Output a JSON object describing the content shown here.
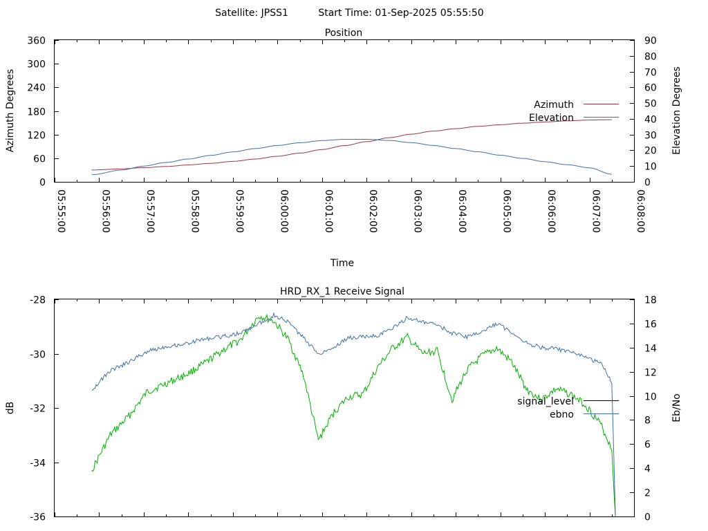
{
  "header": {
    "satellite": "Satellite: JPSS1",
    "start_time": "Start Time: 01-Sep-2025 05:55:50"
  },
  "colors": {
    "azimuth": "#9f3340",
    "elevation": "#3f6fa8",
    "signal_level": "#00b000",
    "ebno": "#3f6fa8",
    "signal_level_legend": "#000000",
    "axes": "#000000",
    "background": "#ffffff"
  },
  "chart_data": [
    {
      "type": "line",
      "title": "Position",
      "xlabel": "Time",
      "ylabel": "Azimuth Degrees",
      "y2label": "Elevation Degrees",
      "xlim": [
        "05:55:00",
        "06:08:00"
      ],
      "ylim": [
        0,
        360
      ],
      "y2lim": [
        0,
        90
      ],
      "x_ticks": [
        "05:55:00",
        "05:56:00",
        "05:57:00",
        "05:58:00",
        "05:59:00",
        "06:00:00",
        "06:01:00",
        "06:02:00",
        "06:03:00",
        "06:04:00",
        "06:05:00",
        "06:06:00",
        "06:07:00",
        "06:08:00"
      ],
      "y_ticks": [
        "0",
        "60",
        "120",
        "180",
        "240",
        "300",
        "360"
      ],
      "y2_ticks": [
        "0",
        "10",
        "20",
        "30",
        "40",
        "50",
        "60",
        "70",
        "80",
        "90"
      ],
      "legend_position": "right",
      "series": [
        {
          "name": "Azimuth",
          "axis": "left",
          "x": [
            "05:55:50",
            "05:56:30",
            "05:57:00",
            "05:57:30",
            "05:58:00",
            "05:58:30",
            "05:59:00",
            "05:59:30",
            "06:00:00",
            "06:00:30",
            "06:01:00",
            "06:01:30",
            "06:02:00",
            "06:02:30",
            "06:03:00",
            "06:03:30",
            "06:04:00",
            "06:04:30",
            "06:05:00",
            "06:05:30",
            "06:06:00",
            "06:06:30",
            "06:07:00",
            "06:07:30"
          ],
          "values": [
            30,
            33,
            36,
            39,
            43,
            47,
            52,
            58,
            65,
            73,
            82,
            92,
            102,
            112,
            121,
            129,
            135,
            141,
            145,
            149,
            152,
            155,
            157,
            158
          ]
        },
        {
          "name": "Elevation",
          "axis": "right",
          "x": [
            "05:55:50",
            "05:56:30",
            "05:57:00",
            "05:57:30",
            "05:58:00",
            "05:58:30",
            "05:59:00",
            "05:59:30",
            "06:00:00",
            "06:00:30",
            "06:01:00",
            "06:01:30",
            "06:02:00",
            "06:02:30",
            "06:03:00",
            "06:03:30",
            "06:04:00",
            "06:04:30",
            "06:05:00",
            "06:05:30",
            "06:06:00",
            "06:06:30",
            "06:07:00",
            "06:07:30"
          ],
          "values": [
            4.5,
            7.5,
            10,
            12.3,
            14.5,
            16.8,
            19,
            21.1,
            23.1,
            24.8,
            26.2,
            27.0,
            27.0,
            26.3,
            24.9,
            23.1,
            21.1,
            19.1,
            16.9,
            14.9,
            12.8,
            10.9,
            8.9,
            4.8
          ]
        }
      ]
    },
    {
      "type": "line",
      "title": "HRD_RX_1 Receive Signal",
      "ylabel": "dB",
      "y2label": "Eb/No",
      "xlim": [
        "05:55:00",
        "06:08:00"
      ],
      "ylim": [
        -36,
        -28
      ],
      "y2lim": [
        0,
        18
      ],
      "y_ticks": [
        "-36",
        "-34",
        "-32",
        "-30",
        "-28"
      ],
      "y2_ticks": [
        "0",
        "2",
        "4",
        "6",
        "8",
        "10",
        "12",
        "14",
        "16",
        "18"
      ],
      "legend_position": "right",
      "series": [
        {
          "name": "signal_level",
          "axis": "left",
          "x": [
            "05:55:50",
            "05:56:15",
            "05:56:40",
            "05:57:05",
            "05:57:30",
            "05:57:55",
            "05:58:20",
            "05:58:45",
            "05:59:10",
            "05:59:35",
            "05:59:55",
            "06:00:15",
            "06:00:35",
            "06:00:55",
            "06:01:15",
            "06:01:35",
            "06:01:55",
            "06:02:15",
            "06:02:35",
            "06:02:55",
            "06:03:15",
            "06:03:35",
            "06:03:55",
            "06:04:15",
            "06:04:35",
            "06:04:55",
            "06:05:15",
            "06:05:35",
            "06:05:55",
            "06:06:15",
            "06:06:35",
            "06:06:55",
            "06:07:15",
            "06:07:30",
            "06:07:35"
          ],
          "values": [
            -34.3,
            -33.0,
            -32.3,
            -31.4,
            -31.1,
            -30.8,
            -30.4,
            -29.9,
            -29.5,
            -28.6,
            -28.8,
            -29.5,
            -30.8,
            -33.2,
            -32.2,
            -31.6,
            -31.5,
            -30.5,
            -29.8,
            -29.4,
            -30.0,
            -29.9,
            -31.7,
            -30.6,
            -30.1,
            -29.8,
            -30.3,
            -31.3,
            -31.7,
            -31.3,
            -31.5,
            -31.9,
            -32.6,
            -33.5,
            -36.0
          ]
        },
        {
          "name": "ebno",
          "axis": "right",
          "x": [
            "05:55:50",
            "05:56:15",
            "05:56:40",
            "05:57:05",
            "05:57:30",
            "05:57:55",
            "05:58:20",
            "05:58:45",
            "05:59:10",
            "05:59:35",
            "05:59:55",
            "06:00:15",
            "06:00:35",
            "06:00:55",
            "06:01:15",
            "06:01:35",
            "06:01:55",
            "06:02:15",
            "06:02:35",
            "06:02:55",
            "06:03:15",
            "06:03:35",
            "06:03:55",
            "06:04:15",
            "06:04:35",
            "06:04:55",
            "06:05:15",
            "06:05:35",
            "06:05:55",
            "06:06:15",
            "06:06:35",
            "06:06:55",
            "06:07:15",
            "06:07:30",
            "06:07:35"
          ],
          "values": [
            10.5,
            12.1,
            12.8,
            13.7,
            14.1,
            14.3,
            14.7,
            14.9,
            15.2,
            16.0,
            16.7,
            16.1,
            14.8,
            13.5,
            14.0,
            14.8,
            14.9,
            15.0,
            15.6,
            16.5,
            16.1,
            15.9,
            15.2,
            14.9,
            15.3,
            16.0,
            15.3,
            14.4,
            14.0,
            13.9,
            13.6,
            13.2,
            12.7,
            11.2,
            0.0
          ]
        }
      ]
    }
  ]
}
